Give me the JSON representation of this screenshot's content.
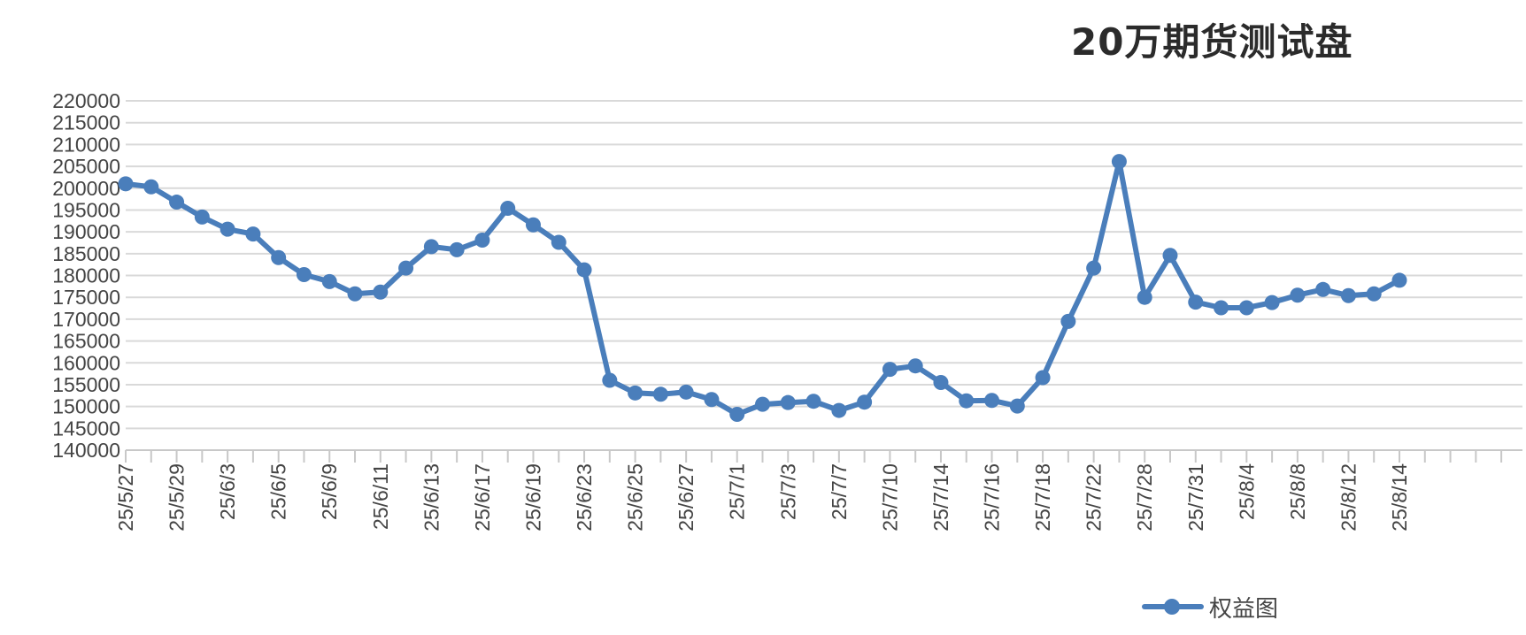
{
  "chart_data": {
    "type": "line",
    "title": "20万期货测试盘",
    "xlabel": "",
    "ylabel": "",
    "ylim": [
      140000,
      220000
    ],
    "ytick_step": 5000,
    "grid": true,
    "legend_position": "bottom-right",
    "color": "#4a7ebb",
    "x_tick_labels": [
      "25/5/27",
      "25/5/29",
      "25/6/3",
      "25/6/5",
      "25/6/9",
      "25/6/11",
      "25/6/13",
      "25/6/17",
      "25/6/19",
      "25/6/23",
      "25/6/25",
      "25/6/27",
      "25/7/1",
      "25/7/3",
      "25/7/7",
      "25/7/10",
      "25/7/14",
      "25/7/16",
      "25/7/18",
      "25/7/22",
      "25/7/28",
      "25/7/31",
      "25/8/4",
      "25/8/8",
      "25/8/12",
      "25/8/14"
    ],
    "series": [
      {
        "name": "权益图",
        "values": [
          201000,
          200300,
          196800,
          193400,
          190600,
          189500,
          184100,
          180200,
          178600,
          175800,
          176200,
          181700,
          186600,
          185900,
          188100,
          195400,
          191600,
          187600,
          181300,
          156000,
          153100,
          152800,
          153300,
          151600,
          148200,
          150500,
          150900,
          151200,
          149100,
          151000,
          158500,
          159300,
          155500,
          151300,
          151400,
          150100,
          156600,
          169500,
          181700,
          206100,
          175000,
          184600,
          173900,
          172600,
          172600,
          173800,
          175500,
          176800,
          175400,
          175800,
          178900
        ]
      }
    ]
  }
}
